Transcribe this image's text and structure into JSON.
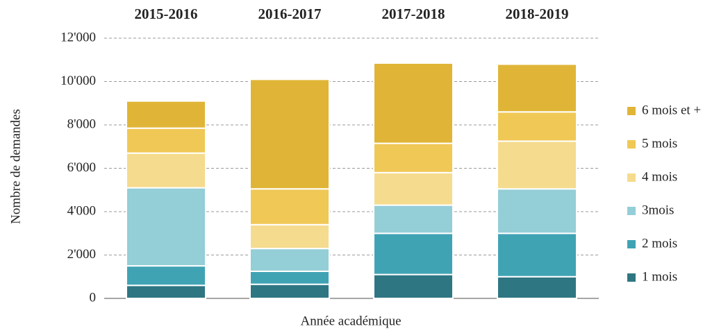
{
  "chart_data": {
    "type": "stacked_bar",
    "categories": [
      "2015-2016",
      "2016-2017",
      "2017-2018",
      "2018-2019"
    ],
    "series": [
      {
        "name": "1 mois",
        "color": "#2f7683",
        "values": [
          600,
          650,
          1100,
          1000
        ]
      },
      {
        "name": "2 mois",
        "color": "#40a3b4",
        "values": [
          900,
          600,
          1900,
          2000
        ]
      },
      {
        "name": "3mois",
        "color": "#94ced7",
        "values": [
          3600,
          1050,
          1300,
          2050
        ]
      },
      {
        "name": "4 mois",
        "color": "#f5db8d",
        "values": [
          1600,
          1100,
          1500,
          2200
        ]
      },
      {
        "name": "5 mois",
        "color": "#f0c856",
        "values": [
          1150,
          1650,
          1350,
          1350
        ]
      },
      {
        "name": "6 mois et +",
        "color": "#e0b537",
        "values": [
          1250,
          5050,
          3700,
          2200
        ]
      }
    ],
    "ylabel": "Nombre de demandes",
    "xlabel": "Année académique",
    "ylim": [
      0,
      12000
    ],
    "yticks": [
      0,
      {
        "value": 2000,
        "label": "2'000"
      },
      {
        "value": 4000,
        "label": "4'000"
      },
      {
        "value": 6000,
        "label": "6'000"
      },
      {
        "value": 8000,
        "label": "8'000"
      },
      {
        "value": 10000,
        "label": "10'000"
      },
      {
        "value": 12000,
        "label": "12'000"
      }
    ],
    "grid": true,
    "legend": "right"
  }
}
